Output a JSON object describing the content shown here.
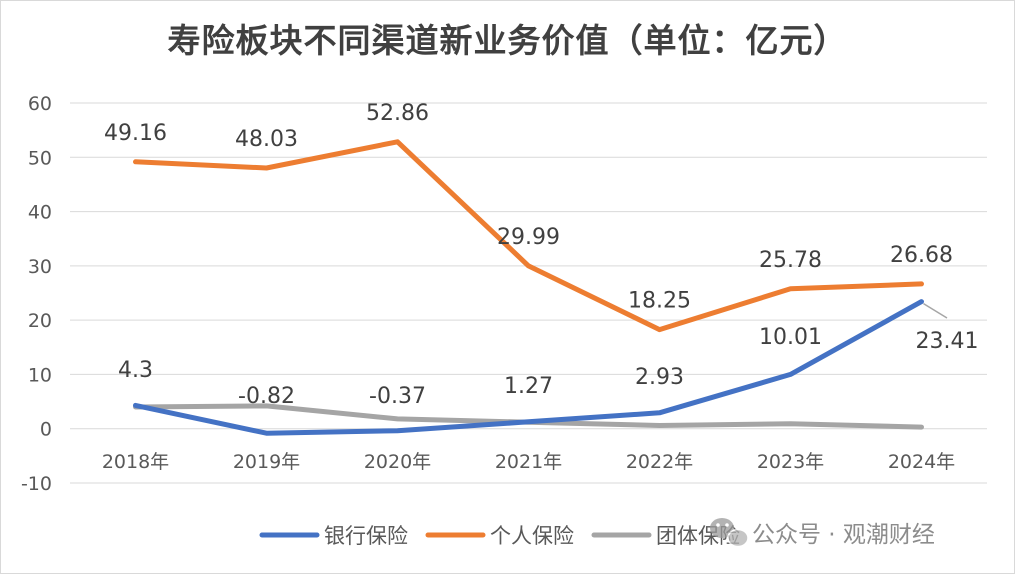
{
  "chart_data": {
    "type": "line",
    "title": "寿险板块不同渠道新业务价值（单位：亿元）",
    "categories": [
      "2018年",
      "2019年",
      "2020年",
      "2021年",
      "2022年",
      "2023年",
      "2024年"
    ],
    "ylim": [
      -10,
      60
    ],
    "yticks": [
      "60",
      "50",
      "40",
      "30",
      "20",
      "10",
      "0",
      "-10"
    ],
    "grid": true,
    "legend_position": "bottom",
    "series": [
      {
        "name": "银行保险",
        "color": "#4472c4",
        "values": [
          4.3,
          -0.82,
          -0.37,
          1.27,
          2.93,
          10.01,
          23.41
        ],
        "labels": [
          "4.3",
          "-0.82",
          "-0.37",
          "1.27",
          "2.93",
          "10.01",
          "23.41"
        ]
      },
      {
        "name": "个人保险",
        "color": "#ed7d31",
        "values": [
          49.16,
          48.03,
          52.86,
          29.99,
          18.25,
          25.78,
          26.68
        ],
        "labels": [
          "49.16",
          "48.03",
          "52.86",
          "29.99",
          "18.25",
          "25.78",
          "26.68"
        ]
      },
      {
        "name": "团体保险",
        "color": "#a5a5a5",
        "values": [
          4.0,
          4.2,
          1.8,
          1.2,
          0.6,
          0.9,
          0.3
        ]
      }
    ]
  },
  "watermark": {
    "text": "公众号 · 观潮财经",
    "icon": "wechat-icon"
  }
}
